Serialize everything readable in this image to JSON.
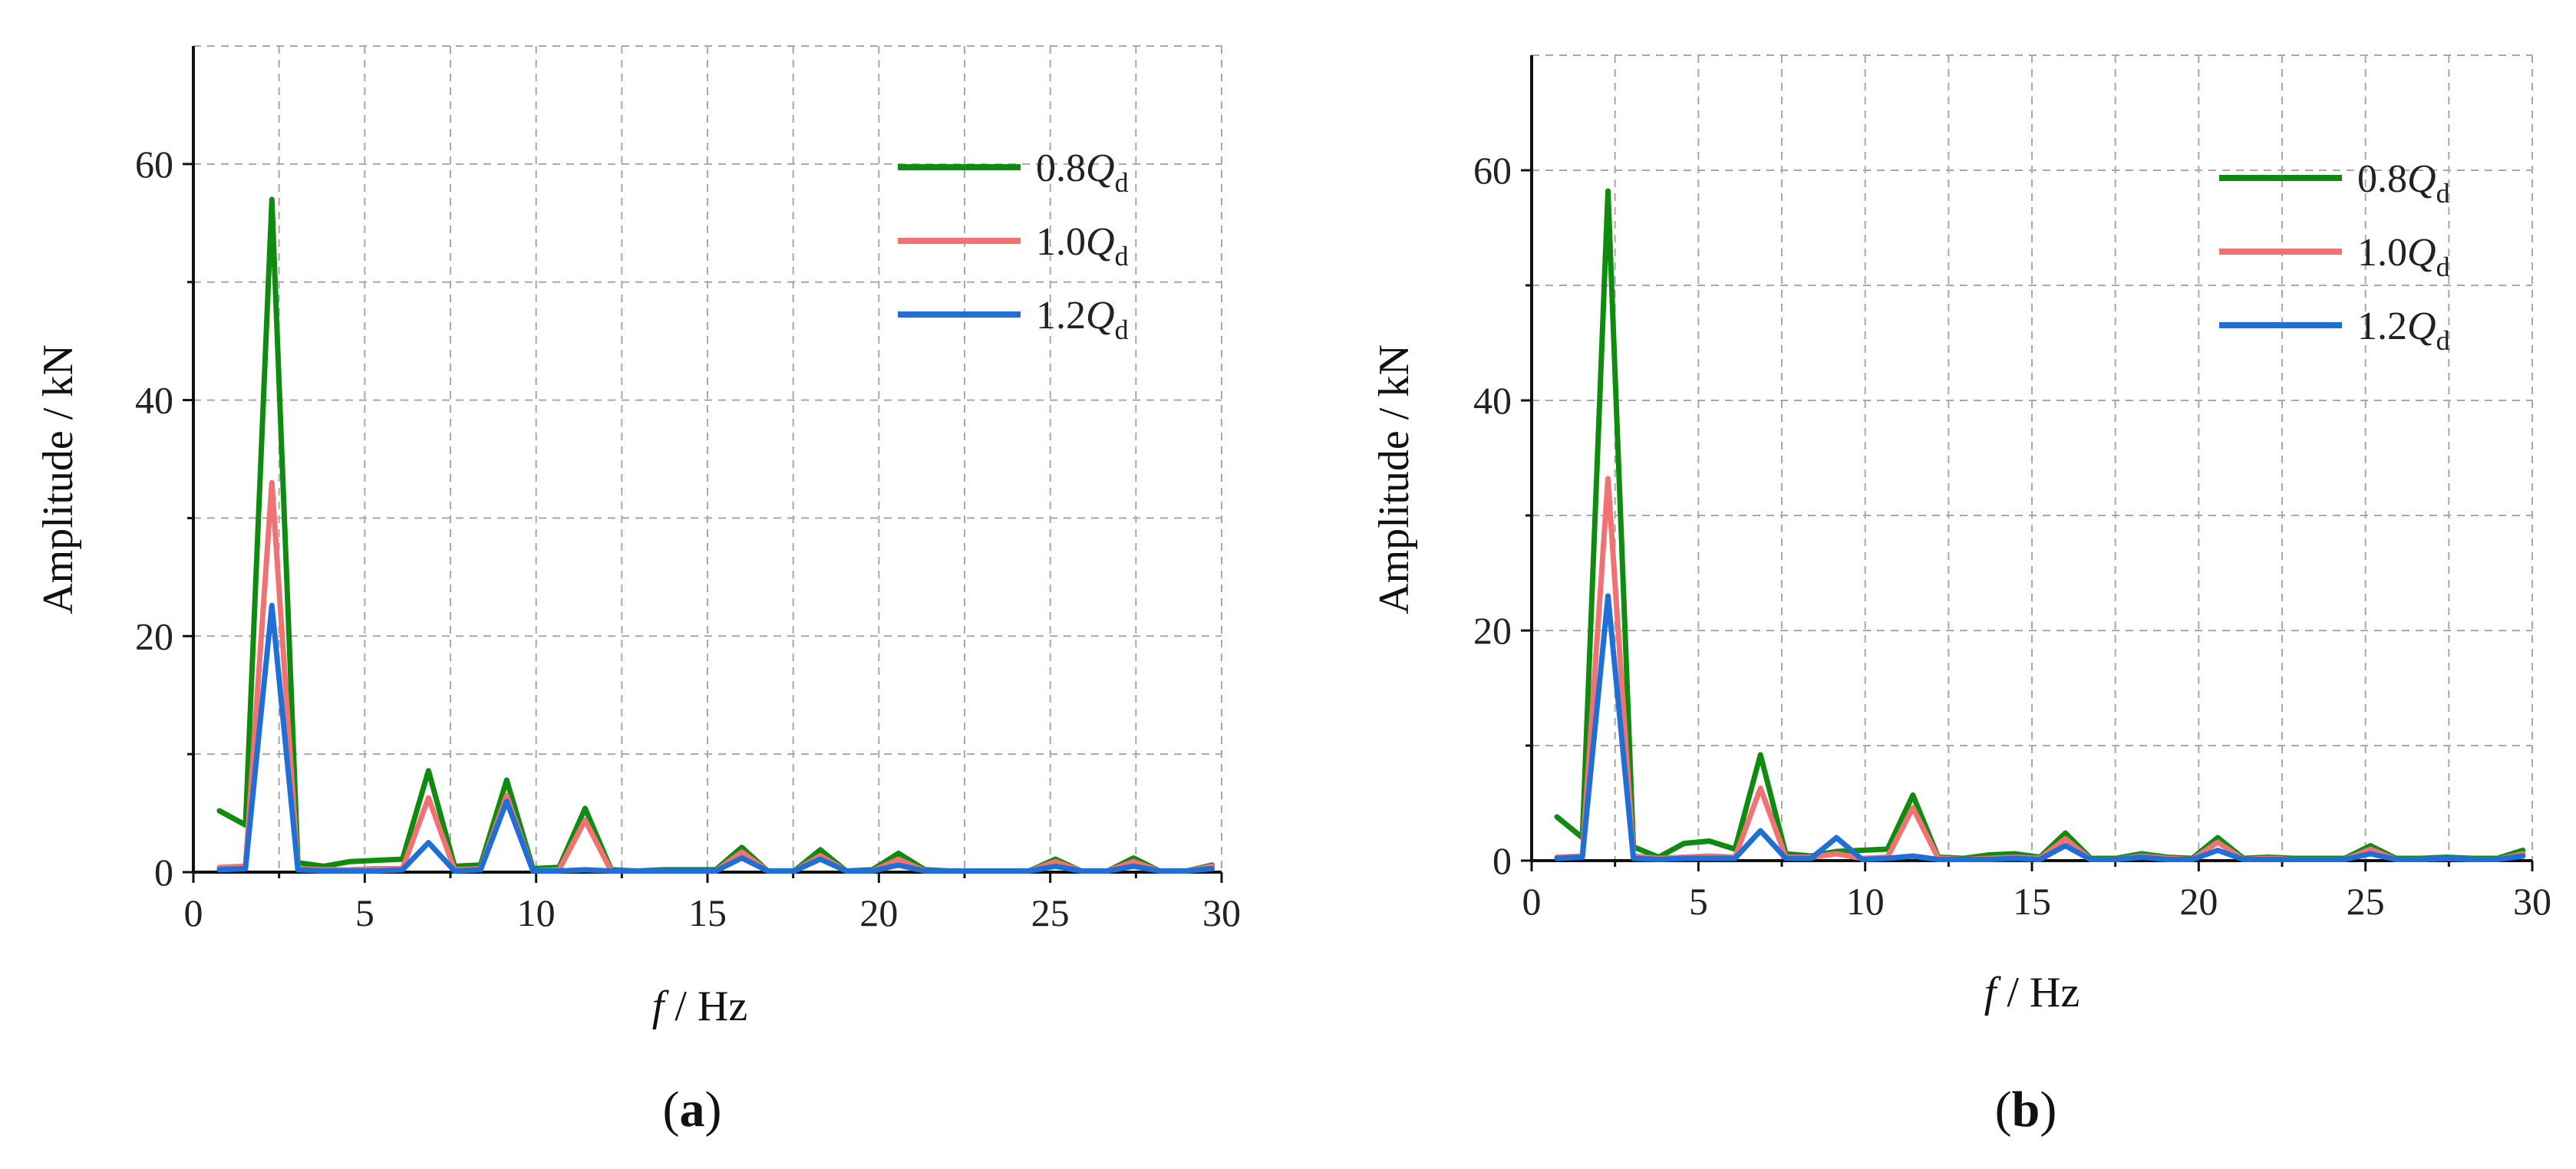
{
  "panels": [
    {
      "label": "a",
      "xlabel_var": "f",
      "xlabel_unit": " / Hz",
      "ylabel": "Amplitude / kN",
      "xlim": [
        0,
        30
      ],
      "ylim": [
        0,
        70
      ],
      "xticks": [
        0,
        5,
        10,
        15,
        20,
        25,
        30
      ],
      "yticks": [
        0,
        20,
        40,
        60
      ],
      "legend": [
        {
          "prefix": "0.8",
          "var": "Q",
          "sub": "d",
          "color": "#0f8c0f"
        },
        {
          "prefix": "1.0",
          "var": "Q",
          "sub": "d",
          "color": "#f07272"
        },
        {
          "prefix": "1.2",
          "var": "Q",
          "sub": "d",
          "color": "#1f6fd6"
        }
      ]
    },
    {
      "label": "b",
      "xlabel_var": "f",
      "xlabel_unit": " / Hz",
      "ylabel": "Amplitude / kN",
      "xlim": [
        0,
        30
      ],
      "ylim": [
        0,
        70
      ],
      "xticks": [
        0,
        5,
        10,
        15,
        20,
        25,
        30
      ],
      "yticks": [
        0,
        20,
        40,
        60
      ],
      "legend": [
        {
          "prefix": "0.8",
          "var": "Q",
          "sub": "d",
          "color": "#0f8c0f"
        },
        {
          "prefix": "1.0",
          "var": "Q",
          "sub": "d",
          "color": "#f07272"
        },
        {
          "prefix": "1.2",
          "var": "Q",
          "sub": "d",
          "color": "#1f6fd6"
        }
      ]
    }
  ],
  "chart_data": [
    {
      "type": "line",
      "panel": "a",
      "xlabel": "f / Hz",
      "ylabel": "Amplitude / kN",
      "xlim": [
        0,
        30
      ],
      "ylim": [
        0,
        70
      ],
      "grid": true,
      "legend_position": "top-right",
      "x": [
        0.76,
        1.52,
        2.29,
        3.05,
        3.81,
        4.57,
        5.33,
        6.1,
        6.86,
        7.62,
        8.38,
        9.14,
        9.91,
        10.67,
        11.43,
        12.19,
        12.95,
        13.72,
        14.48,
        15.24,
        16.0,
        16.76,
        17.53,
        18.29,
        19.05,
        19.81,
        20.57,
        21.34,
        22.1,
        22.86,
        23.62,
        24.38,
        25.15,
        25.91,
        26.67,
        27.43,
        28.19,
        28.96,
        29.72
      ],
      "series": [
        {
          "name": "0.8Qd",
          "color": "#0f8c0f",
          "values": [
            5.2,
            4.0,
            57.0,
            0.8,
            0.5,
            0.9,
            1.0,
            1.1,
            8.6,
            0.5,
            0.6,
            7.8,
            0.3,
            0.4,
            5.4,
            0.2,
            0.1,
            0.2,
            0.2,
            0.2,
            2.1,
            0.1,
            0.1,
            1.9,
            0.1,
            0.2,
            1.6,
            0.2,
            0.1,
            0.1,
            0.1,
            0.1,
            1.1,
            0.1,
            0.1,
            1.2,
            0.1,
            0.1,
            0.6
          ]
        },
        {
          "name": "1.0Qd",
          "color": "#f07272",
          "values": [
            0.4,
            0.5,
            33.0,
            0.3,
            0.2,
            0.2,
            0.3,
            0.3,
            6.3,
            0.2,
            0.3,
            6.5,
            0.1,
            0.2,
            4.4,
            0.1,
            0.1,
            0.1,
            0.1,
            0.1,
            1.7,
            0.1,
            0.1,
            1.4,
            0.1,
            0.1,
            1.1,
            0.1,
            0.1,
            0.1,
            0.1,
            0.1,
            0.9,
            0.1,
            0.1,
            0.9,
            0.1,
            0.1,
            0.5
          ]
        },
        {
          "name": "1.2Qd",
          "color": "#1f6fd6",
          "values": [
            0.2,
            0.3,
            22.6,
            0.2,
            0.1,
            0.1,
            0.1,
            0.2,
            2.5,
            0.1,
            0.2,
            6.0,
            0.1,
            0.1,
            0.2,
            0.1,
            0.1,
            0.1,
            0.1,
            0.1,
            1.2,
            0.1,
            0.1,
            1.1,
            0.1,
            0.1,
            0.6,
            0.1,
            0.1,
            0.1,
            0.1,
            0.1,
            0.5,
            0.1,
            0.1,
            0.5,
            0.1,
            0.1,
            0.3
          ]
        }
      ]
    },
    {
      "type": "line",
      "panel": "b",
      "xlabel": "f / Hz",
      "ylabel": "Amplitude / kN",
      "xlim": [
        0,
        30
      ],
      "ylim": [
        0,
        70
      ],
      "grid": true,
      "legend_position": "top-right",
      "x": [
        0.76,
        1.52,
        2.29,
        3.05,
        3.81,
        4.57,
        5.33,
        6.1,
        6.86,
        7.62,
        8.38,
        9.14,
        9.91,
        10.67,
        11.43,
        12.19,
        12.95,
        13.72,
        14.48,
        15.24,
        16.0,
        16.76,
        17.53,
        18.29,
        19.05,
        19.81,
        20.57,
        21.34,
        22.1,
        22.86,
        23.62,
        24.38,
        25.15,
        25.91,
        26.67,
        27.43,
        28.19,
        28.96,
        29.72
      ],
      "series": [
        {
          "name": "0.8Qd",
          "color": "#0f8c0f",
          "values": [
            3.8,
            2.0,
            58.2,
            1.2,
            0.3,
            1.5,
            1.7,
            1.0,
            9.2,
            0.6,
            0.4,
            0.8,
            0.9,
            1.0,
            5.7,
            0.3,
            0.2,
            0.5,
            0.6,
            0.3,
            2.4,
            0.2,
            0.2,
            0.6,
            0.3,
            0.2,
            2.0,
            0.2,
            0.3,
            0.2,
            0.2,
            0.2,
            1.3,
            0.2,
            0.2,
            0.3,
            0.2,
            0.2,
            0.9
          ]
        },
        {
          "name": "1.0Qd",
          "color": "#f07272",
          "values": [
            0.3,
            0.4,
            33.2,
            0.4,
            0.2,
            0.3,
            0.4,
            0.3,
            6.3,
            0.3,
            0.3,
            0.6,
            0.2,
            0.3,
            4.6,
            0.2,
            0.1,
            0.2,
            0.3,
            0.2,
            1.9,
            0.1,
            0.1,
            0.4,
            0.2,
            0.1,
            1.6,
            0.1,
            0.2,
            0.1,
            0.1,
            0.1,
            1.0,
            0.1,
            0.1,
            0.2,
            0.1,
            0.1,
            0.6
          ]
        },
        {
          "name": "1.2Qd",
          "color": "#1f6fd6",
          "values": [
            0.2,
            0.3,
            23.0,
            0.2,
            0.1,
            0.2,
            0.2,
            0.2,
            2.6,
            0.2,
            0.2,
            2.0,
            0.1,
            0.2,
            0.4,
            0.1,
            0.1,
            0.1,
            0.2,
            0.1,
            1.3,
            0.1,
            0.1,
            0.3,
            0.1,
            0.1,
            0.9,
            0.1,
            0.1,
            0.1,
            0.1,
            0.1,
            0.6,
            0.1,
            0.1,
            0.2,
            0.1,
            0.1,
            0.4
          ]
        }
      ]
    }
  ]
}
